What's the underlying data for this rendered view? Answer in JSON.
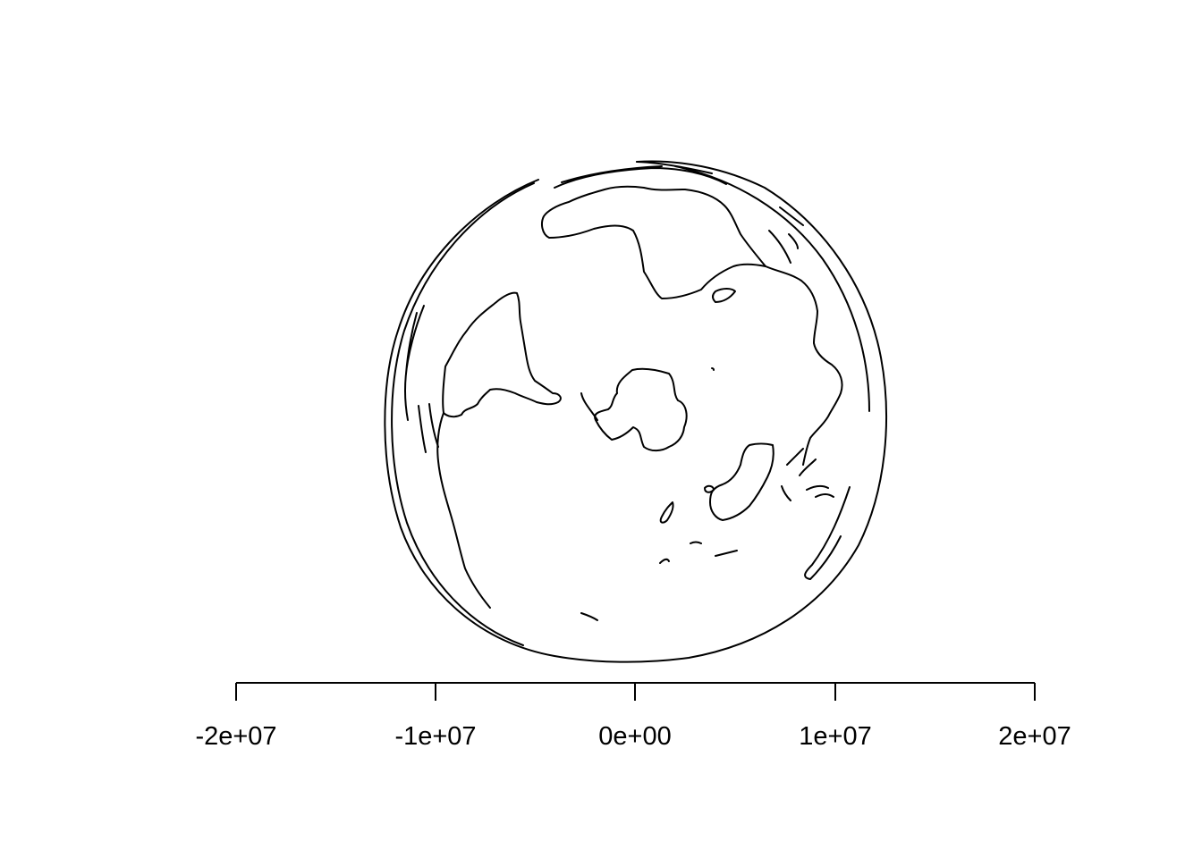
{
  "chart_data": {
    "type": "map",
    "projection": "orthographic",
    "view": "globe centred on the South Pole",
    "features": [
      "Antarctica",
      "South America",
      "Africa",
      "Australia",
      "New Zealand"
    ],
    "x_axis": {
      "ticks": [
        -20000000,
        -10000000,
        0,
        10000000,
        20000000
      ],
      "tick_labels": [
        "-2e+07",
        "-1e+07",
        "0e+00",
        "1e+07",
        "2e+07"
      ]
    },
    "xlim": [
      -20000000,
      20000000
    ],
    "line_color": "#000000",
    "background": "#ffffff"
  }
}
